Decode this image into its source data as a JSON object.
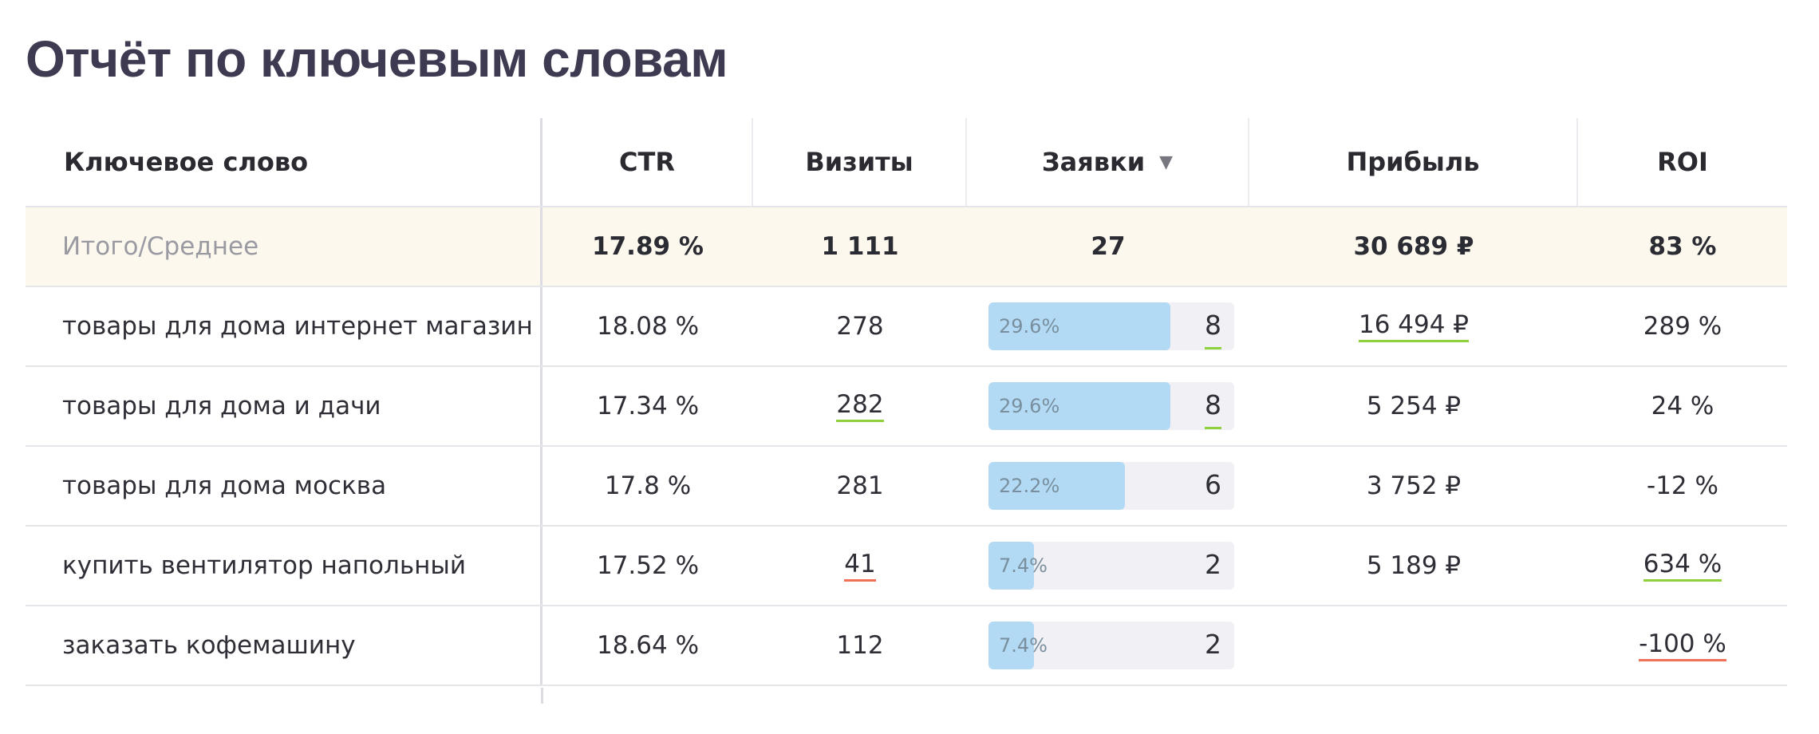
{
  "page": {
    "title": "Отчёт по ключевым словам"
  },
  "table": {
    "headers": {
      "keyword": "Ключевое слово",
      "ctr": "CTR",
      "visits": "Визиты",
      "leads": "Заявки",
      "profit": "Прибыль",
      "roi": "ROI",
      "sort_icon": "▼"
    },
    "total": {
      "label": "Итого/Среднее",
      "ctr": "17.89 %",
      "visits": "1 111",
      "leads": "27",
      "profit": "30 689 ₽",
      "roi": "83 %"
    },
    "rows": [
      {
        "keyword": "товары для дома интернет магазин",
        "ctr": "18.08 %",
        "visits": "278",
        "leads_pct": "29.6%",
        "leads_share": 0.296,
        "leads": "8",
        "profit": "16 494 ₽",
        "roi": "289 %"
      },
      {
        "keyword": "товары для дома и дачи",
        "ctr": "17.34 %",
        "visits": "282",
        "leads_pct": "29.6%",
        "leads_share": 0.296,
        "leads": "8",
        "profit": "5 254 ₽",
        "roi": "24 %"
      },
      {
        "keyword": "товары для дома москва",
        "ctr": "17.8 %",
        "visits": "281",
        "leads_pct": "22.2%",
        "leads_share": 0.222,
        "leads": "6",
        "profit": "3 752 ₽",
        "roi": "-12 %"
      },
      {
        "keyword": "купить вентилятор напольный",
        "ctr": "17.52 %",
        "visits": "41",
        "leads_pct": "7.4%",
        "leads_share": 0.074,
        "leads": "2",
        "profit": "5 189 ₽",
        "roi": "634 %"
      },
      {
        "keyword": "заказать кофемашину",
        "ctr": "18.64 %",
        "visits": "112",
        "leads_pct": "7.4%",
        "leads_share": 0.074,
        "leads": "2",
        "profit": "",
        "roi": "-100 %"
      }
    ]
  },
  "colors": {
    "title": "#3d3a52",
    "total_row_bg": "#fcf8ed",
    "bar_fill": "#b3daf4",
    "bar_track": "#f1f1f5",
    "underline_good": "#8ed13d",
    "underline_bad": "#f07058"
  }
}
